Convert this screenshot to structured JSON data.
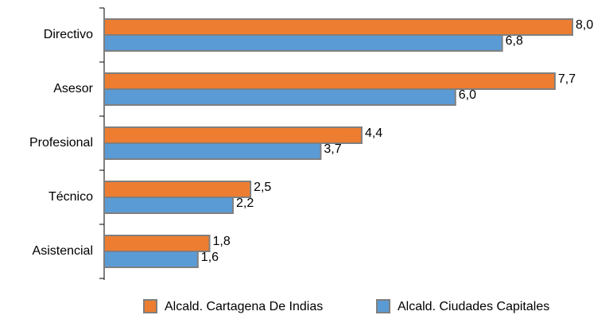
{
  "chart_data": {
    "type": "bar",
    "orientation": "horizontal",
    "categories": [
      "Directivo",
      "Asesor",
      "Profesional",
      "Técnico",
      "Asistencial"
    ],
    "series": [
      {
        "name": "Alcald. Cartagena De Indias",
        "color": "#ed7d31",
        "values": [
          8.0,
          7.7,
          4.4,
          2.5,
          1.8
        ],
        "value_labels": [
          "8,0",
          "7,7",
          "4,4",
          "2,5",
          "1,8"
        ]
      },
      {
        "name": "Alcald. Ciudades Capitales",
        "color": "#5b9bd5",
        "values": [
          6.8,
          6.0,
          3.7,
          2.2,
          1.6
        ],
        "value_labels": [
          "6,8",
          "6,0",
          "3,7",
          "2,2",
          "1,6"
        ]
      }
    ],
    "legend": "bottom"
  }
}
